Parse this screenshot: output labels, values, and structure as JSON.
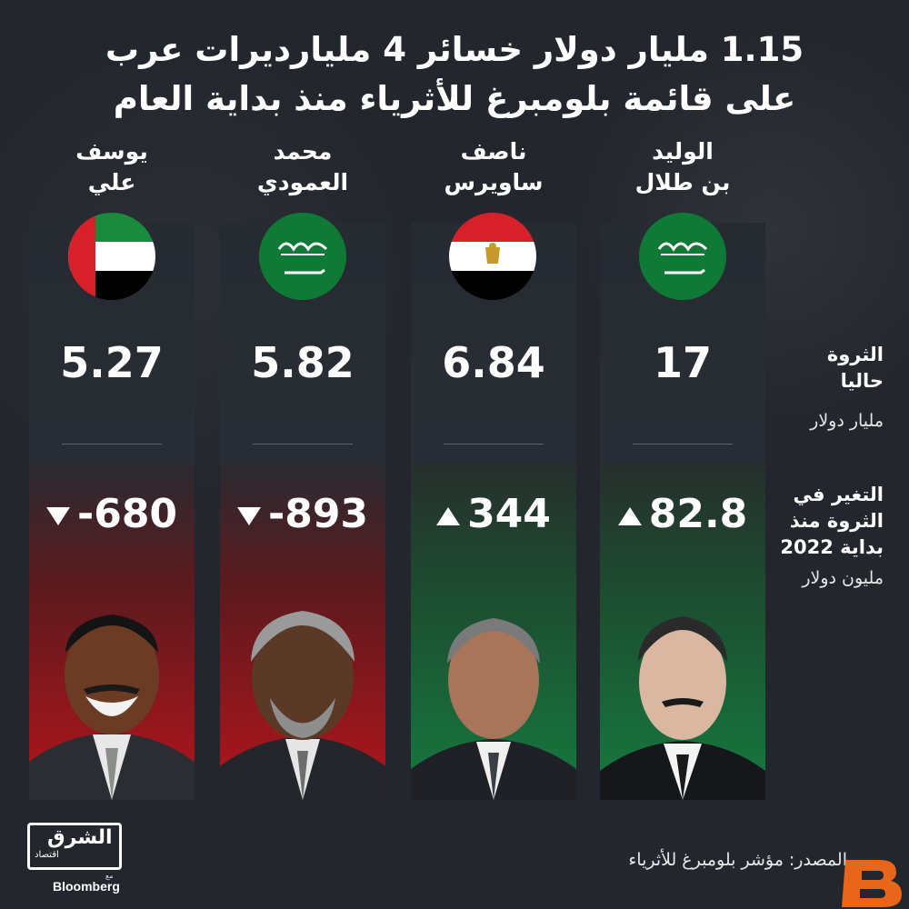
{
  "title_line1": "1.15 مليار دولار خسائر 4 مليارديرات عرب",
  "title_line2": "على قائمة بلومبرغ للأثرياء منذ بداية العام",
  "row_labels": {
    "wealth_title_1": "الثروة",
    "wealth_title_2": "حاليا",
    "wealth_unit": "مليار دولار",
    "change_title_1": "التغير في",
    "change_title_2": "الثروة منذ",
    "change_title_3": "بداية 2022",
    "change_unit": "مليون دولار"
  },
  "chart_data": {
    "type": "table",
    "columns": [
      "الثروة حاليا (مليار دولار)",
      "التغير في الثروة منذ بداية 2022 (مليون دولار)"
    ],
    "people": [
      {
        "name_line1": "يوسف",
        "name_line2": "علي",
        "flag": "uae-flag-icon",
        "wealth": "5.27",
        "change": "-680",
        "direction": "down",
        "status_color": "#b3151c"
      },
      {
        "name_line1": "محمد",
        "name_line2": "العمودي",
        "flag": "saudi-flag-icon",
        "wealth": "5.82",
        "change": "-893",
        "direction": "down",
        "status_color": "#b3151c"
      },
      {
        "name_line1": "ناصف",
        "name_line2": "ساويرس",
        "flag": "egypt-flag-icon",
        "wealth": "6.84",
        "change": "344",
        "direction": "up",
        "status_color": "#167a3f"
      },
      {
        "name_line1": "الوليد",
        "name_line2": "بن طلال",
        "flag": "saudi-flag-icon",
        "wealth": "17",
        "change": "82.8",
        "direction": "up",
        "status_color": "#167a3f"
      }
    ]
  },
  "footer": {
    "logo_main": "الشرق",
    "logo_sub": "اقتصاد",
    "logo_mini": "مع",
    "logo_bloomberg": "Bloomberg",
    "source": "المصدر: مؤشر بلومبرغ للأثرياء"
  },
  "colors": {
    "background": "#23262d",
    "negative": "#b3151c",
    "positive": "#167a3f",
    "saudi_green": "#0f7a36"
  }
}
